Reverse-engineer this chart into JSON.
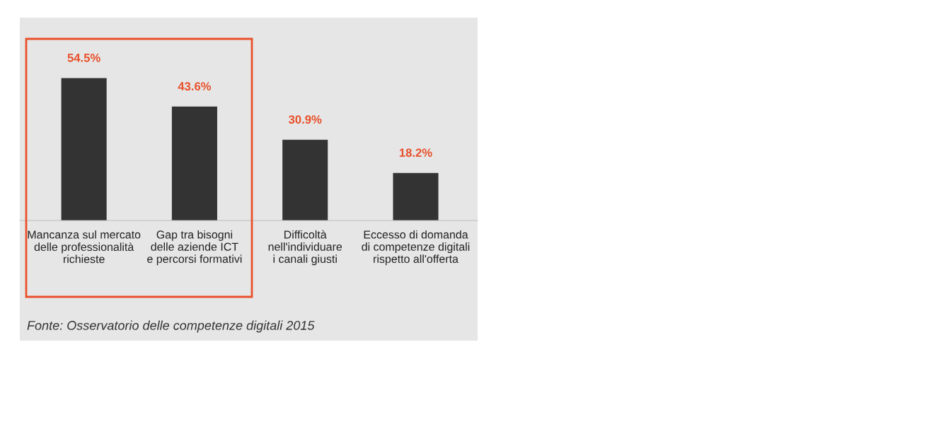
{
  "chart_data": {
    "type": "bar",
    "categories": [
      "Mancanza sul mercato\ndelle professionalità\nrichieste",
      "Gap tra bisogni\ndelle aziende ICT\ne percorsi formativi",
      "Difficoltà\nnell'individuare\ni canali giusti",
      "Eccesso di domanda\ndi competenze digitali\nrispetto all'offerta"
    ],
    "values": [
      54.5,
      43.6,
      30.9,
      18.2
    ],
    "value_labels": [
      "54.5%",
      "43.6%",
      "30.9%",
      "18.2%"
    ],
    "color": "#333333",
    "annotations": [
      "Fonte: Osservatorio delle competenze digitali 2015"
    ],
    "grid": false,
    "legend": false
  }
}
